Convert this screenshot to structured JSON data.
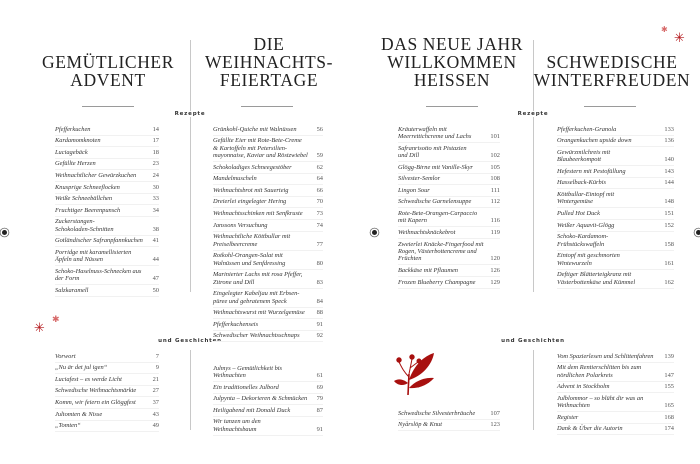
{
  "accent_color": "#b3161b",
  "labels": {
    "recipes": "Rezepte",
    "stories": "und Geschichten"
  },
  "chapters": [
    {
      "title": "GEMÜTLICHER\nADVENT",
      "recipes": [
        {
          "t": "Pfefferkuchen",
          "n": "14"
        },
        {
          "t": "Kardamomknoten",
          "n": "17"
        },
        {
          "t": "Luciagebäck",
          "n": "18"
        },
        {
          "t": "Gefüllte Herzen",
          "n": "23"
        },
        {
          "t": "Weihnachtlicher Gewürzkuchen",
          "n": "24"
        },
        {
          "t": "Knusprige Schneeflocken",
          "n": "30"
        },
        {
          "t": "Weiße Schneebällchen",
          "n": "33"
        },
        {
          "t": "Fruchtiger Beerenpunsch",
          "n": "34"
        },
        {
          "t": "Zuckerstangen-\nSchokoladen-Schnitten",
          "n": "38"
        },
        {
          "t": "Gotländischer Safranpfannkuchen",
          "n": "41"
        },
        {
          "t": "Porridge mit karamellisierten\nÄpfeln und Nüssen",
          "n": "44"
        },
        {
          "t": "Schoko-Haselnuss-Schnecken aus\nder Form",
          "n": "47"
        },
        {
          "t": "Salzkaramell",
          "n": "50"
        }
      ],
      "stories": [
        {
          "t": "Vorwort",
          "n": "7"
        },
        {
          "t": "„Nu är det jul igen“",
          "n": "9"
        },
        {
          "t": "Luciafest – es werde Licht",
          "n": "21"
        },
        {
          "t": "Schwedische Weihnachtsmärkte",
          "n": "27"
        },
        {
          "t": "Komm, wir feiern ein Glöggfest",
          "n": "37"
        },
        {
          "t": "Jultomten & Nisse",
          "n": "43"
        },
        {
          "t": "„Tomten“",
          "n": "49"
        }
      ]
    },
    {
      "title": "DIE\nWEIHNACHTS-\nFEIERTAGE",
      "recipes": [
        {
          "t": "Grünkohl-Quiche mit Walnüssen",
          "n": "56"
        },
        {
          "t": "Gefüllte Eier mit Rote-Bete-Creme\n& Kartoffeln mit Petersilien-\nmayonnaise, Kaviar und Röstzwiebel",
          "n": "59"
        },
        {
          "t": "Schokoladiges Schneegestöber",
          "n": "62"
        },
        {
          "t": "Mandelmuscheln",
          "n": "64"
        },
        {
          "t": "Weihnachtsbrot mit Sauerteig",
          "n": "66"
        },
        {
          "t": "Dreierlei eingelegter Hering",
          "n": "70"
        },
        {
          "t": "Weihnachtsschinken mit Senfkruste",
          "n": "73"
        },
        {
          "t": "Janssons Versuchung",
          "n": "74"
        },
        {
          "t": "Weihnachtliche Köttbullar mit\nPreiselbeercreme",
          "n": "77"
        },
        {
          "t": "Rotkohl-Orangen-Salat mit\nWalnüssen und Senfdressing",
          "n": "80"
        },
        {
          "t": "Marinierter Lachs mit rosa Pfeffer,\nZitrone und Dill",
          "n": "83"
        },
        {
          "t": "Eingelegter Kabeljau mit Erbsen-\npüree und gebratenem Speck",
          "n": "84"
        },
        {
          "t": "Weihnachtswurst mit Wurzelgemüse",
          "n": "88"
        },
        {
          "t": "Pfefferkuchenseis",
          "n": "91"
        },
        {
          "t": "Schwedischer Weihnachtsschnaps",
          "n": "92"
        }
      ],
      "stories": [
        {
          "t": "Julmys – Gemütlichkeit bis\nWeihnachten",
          "n": "61"
        },
        {
          "t": "Ein traditionelles Julbord",
          "n": "69"
        },
        {
          "t": "Julpynta – Dekorieren & Schmücken",
          "n": "79"
        },
        {
          "t": "Heiligabend mit Donald Duck",
          "n": "87"
        },
        {
          "t": "Wir tanzen um den\nWeihnachtsbaum",
          "n": "91"
        }
      ]
    },
    {
      "title": "DAS NEUE JAHR\nWILLKOMMEN\nHEISSEN",
      "recipes": [
        {
          "t": "Kräuterwaffeln mit\nMeerrettichcreme und Lachs",
          "n": "101"
        },
        {
          "t": "Safranrisotto mit Pistazien\nund Dill",
          "n": "102"
        },
        {
          "t": "Glögg-Birne mit Vanille-Skyr",
          "n": "105"
        },
        {
          "t": "Silvester-Semlor",
          "n": "108"
        },
        {
          "t": "Lingon Sour",
          "n": "111"
        },
        {
          "t": "Schwedische Garnelensuppe",
          "n": "112"
        },
        {
          "t": "Rote-Bete-Orangen-Carpaccio\nmit Kapern",
          "n": "116"
        },
        {
          "t": "Weihnachtsknäckebrot",
          "n": "119"
        },
        {
          "t": "Zweierlei Knäcke-Fingerfood mit\nRogen, Västerbottencreme und\nFrüchten",
          "n": "120"
        },
        {
          "t": "Backkäse mit Pflaumen",
          "n": "126"
        },
        {
          "t": "Frozen Blueberry Champagne",
          "n": "129"
        }
      ],
      "stories": [
        {
          "t": "Schwedische Silvesterbräuche",
          "n": "107"
        },
        {
          "t": "Nyårslöp & Knut",
          "n": "123"
        }
      ]
    },
    {
      "title": "SCHWEDISCHE\nWINTERFREUDEN",
      "recipes": [
        {
          "t": "Pfefferkuchen-Granola",
          "n": "133"
        },
        {
          "t": "Orangenkuchen upside down",
          "n": "136"
        },
        {
          "t": "Gewürzmilchreis mit\nBlaubeerkompott",
          "n": "140"
        },
        {
          "t": "Hefestern mit Pestofüllung",
          "n": "143"
        },
        {
          "t": "Hasselback-Kürbis",
          "n": "144"
        },
        {
          "t": "Köttbullar-Eintopf mit\nWintergemüse",
          "n": "148"
        },
        {
          "t": "Pulled Hot Duck",
          "n": "151"
        },
        {
          "t": "Weißer Aquavit-Glögg",
          "n": "152"
        },
        {
          "t": "Schoko-Kardamom-\nFrühstückswaffeln",
          "n": "158"
        },
        {
          "t": "Eintopf mit geschmorten\nWintewurzeln",
          "n": "161"
        },
        {
          "t": "Deftiger Blätterteigkranz mit\nVästerbottenkäse und Kümmel",
          "n": "162"
        }
      ],
      "stories": [
        {
          "t": "Vom Spazierlesen und Schlittenfahren",
          "n": "139"
        },
        {
          "t": "Mit dem Rentierschlitten bis zum\nnördlichen Polarkreis",
          "n": "147"
        },
        {
          "t": "Advent in Stockholm",
          "n": "155"
        },
        {
          "t": "Julblommor – so blüht dir was an\nWeihnachten",
          "n": "165"
        },
        {
          "t": "Register",
          "n": "168"
        },
        {
          "t": "Dank & Über die Autorin",
          "n": "174"
        }
      ]
    }
  ]
}
